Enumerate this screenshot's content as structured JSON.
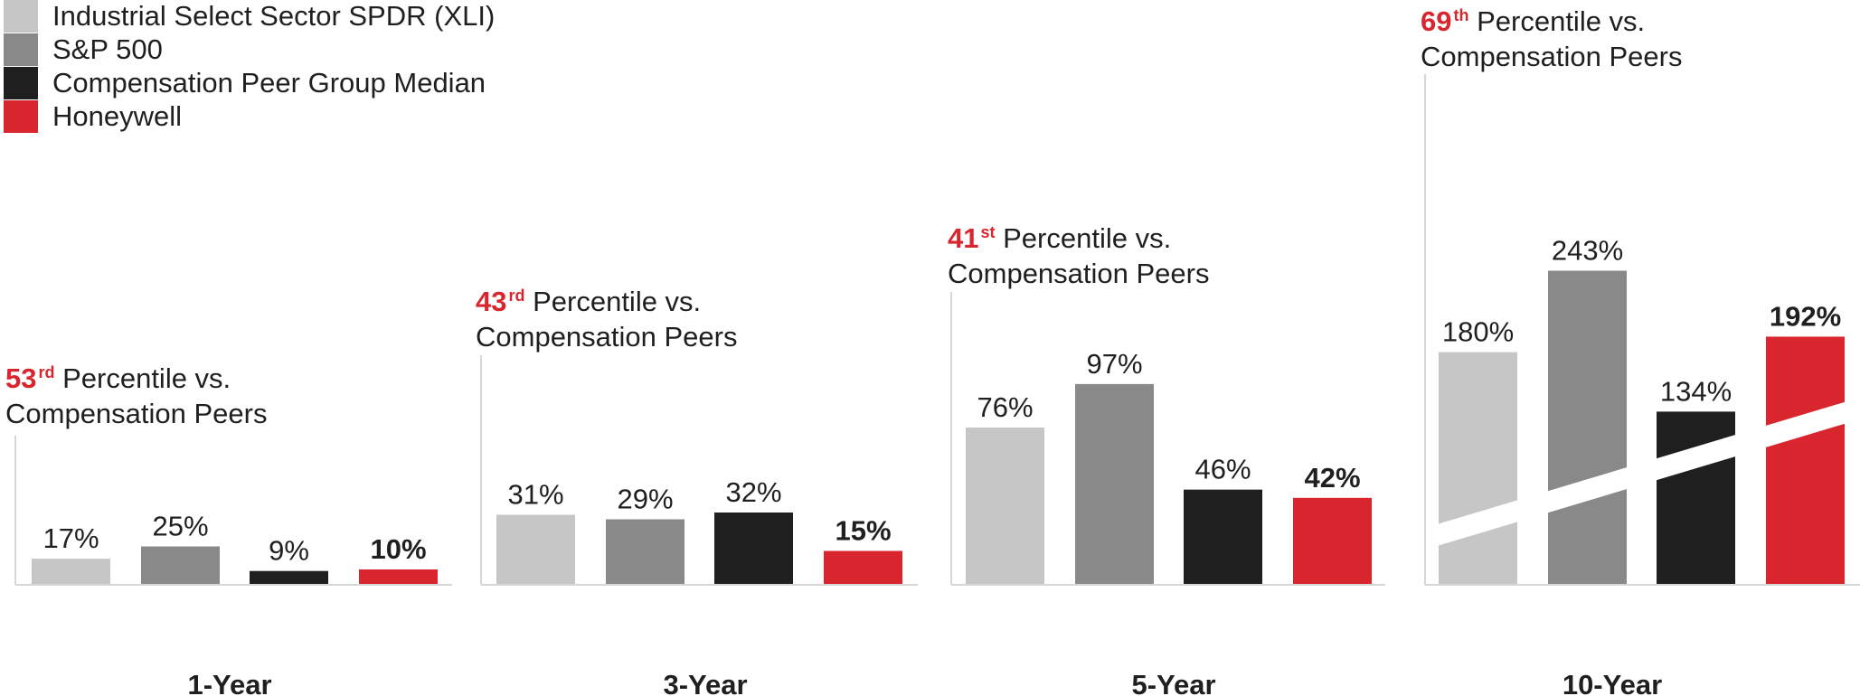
{
  "colors": {
    "xli": "#c6c6c6",
    "sp500": "#898989",
    "peer_median": "#1f1f1f",
    "honeywell": "#d9262e"
  },
  "chart_data": {
    "type": "bar",
    "legend_position": "top-left",
    "grid": false,
    "series_names": [
      "Industrial Select Sector SPDR (XLI)",
      "S&P 500",
      "Compensation Peer Group Median",
      "Honeywell"
    ],
    "categories": [
      "1-Year",
      "3-Year",
      "5-Year",
      "10-Year"
    ],
    "series": [
      {
        "name": "Industrial Select Sector SPDR (XLI)",
        "values": [
          17,
          31,
          76,
          180
        ],
        "labels": [
          "17%",
          "31%",
          "76%",
          "180%"
        ]
      },
      {
        "name": "S&P 500",
        "values": [
          25,
          29,
          97,
          243
        ],
        "labels": [
          "25%",
          "29%",
          "97%",
          "243%"
        ]
      },
      {
        "name": "Compensation Peer Group Median",
        "values": [
          9,
          32,
          46,
          134
        ],
        "labels": [
          "9%",
          "32%",
          "46%",
          "134%"
        ]
      },
      {
        "name": "Honeywell",
        "values": [
          10,
          15,
          42,
          192
        ],
        "labels": [
          "10%",
          "15%",
          "42%",
          "192%"
        ]
      }
    ],
    "percentile_annotations": [
      {
        "number": "53",
        "suffix": "rd",
        "line1": " Percentile vs.",
        "line2": "Compensation Peers"
      },
      {
        "number": "43",
        "suffix": "rd",
        "line1": " Percentile vs.",
        "line2": "Compensation Peers"
      },
      {
        "number": "41",
        "suffix": "st",
        "line1": " Percentile vs.",
        "line2": "Compensation Peers"
      },
      {
        "number": "69",
        "suffix": "th",
        "line1": " Percentile vs.",
        "line2": "Compensation Peers"
      }
    ],
    "axis_break_on": "10-Year"
  }
}
